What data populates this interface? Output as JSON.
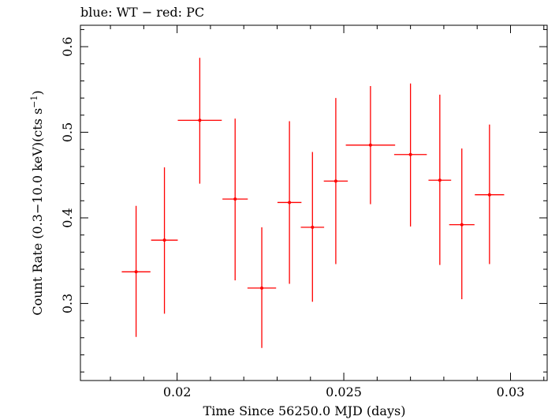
{
  "header": {
    "title": "blue: WT − red: PC"
  },
  "colors": {
    "pc": "#ff0000",
    "axis": "#000000"
  },
  "chart_data": {
    "type": "scatter",
    "title": "blue: WT − red: PC",
    "xlabel": "Time Since 56250.0 MJD (days)",
    "ylabel_main": "Count Rate (0.3−10.0 keV)(cts s",
    "ylabel_sup": "−1",
    "ylabel_close": ")",
    "xlim": [
      0.0171,
      0.0311
    ],
    "ylim": [
      0.21,
      0.625
    ],
    "x_ticks": [
      {
        "value": 0.02,
        "label": "0.02"
      },
      {
        "value": 0.025,
        "label": "0.025"
      },
      {
        "value": 0.03,
        "label": "0.03"
      }
    ],
    "y_ticks": [
      {
        "value": 0.3,
        "label": "0.3"
      },
      {
        "value": 0.4,
        "label": "0.4"
      },
      {
        "value": 0.5,
        "label": "0.5"
      },
      {
        "value": 0.6,
        "label": "0.6"
      }
    ],
    "grid": false,
    "series": [
      {
        "name": "PC",
        "color": "#ff0000",
        "points": [
          {
            "x": 0.01877,
            "xerr": 0.00043,
            "y": 0.337,
            "ylo": 0.261,
            "yhi": 0.414
          },
          {
            "x": 0.01962,
            "xerr": 0.0004,
            "y": 0.374,
            "ylo": 0.288,
            "yhi": 0.459
          },
          {
            "x": 0.02068,
            "xerr": 0.00066,
            "y": 0.514,
            "ylo": 0.44,
            "yhi": 0.587
          },
          {
            "x": 0.02174,
            "xerr": 0.00038,
            "y": 0.422,
            "ylo": 0.327,
            "yhi": 0.516
          },
          {
            "x": 0.02254,
            "xerr": 0.00043,
            "y": 0.318,
            "ylo": 0.248,
            "yhi": 0.389
          },
          {
            "x": 0.02337,
            "xerr": 0.00036,
            "y": 0.418,
            "ylo": 0.323,
            "yhi": 0.513
          },
          {
            "x": 0.02406,
            "xerr": 0.00035,
            "y": 0.389,
            "ylo": 0.302,
            "yhi": 0.477
          },
          {
            "x": 0.02476,
            "xerr": 0.00036,
            "y": 0.443,
            "ylo": 0.346,
            "yhi": 0.54
          },
          {
            "x": 0.0258,
            "xerr": 0.00074,
            "y": 0.485,
            "ylo": 0.416,
            "yhi": 0.554
          },
          {
            "x": 0.027,
            "xerr": 0.00049,
            "y": 0.474,
            "ylo": 0.39,
            "yhi": 0.557
          },
          {
            "x": 0.02788,
            "xerr": 0.00034,
            "y": 0.444,
            "ylo": 0.345,
            "yhi": 0.544
          },
          {
            "x": 0.02854,
            "xerr": 0.00038,
            "y": 0.392,
            "ylo": 0.305,
            "yhi": 0.481
          },
          {
            "x": 0.02937,
            "xerr": 0.00044,
            "y": 0.427,
            "ylo": 0.346,
            "yhi": 0.509
          }
        ]
      }
    ]
  }
}
